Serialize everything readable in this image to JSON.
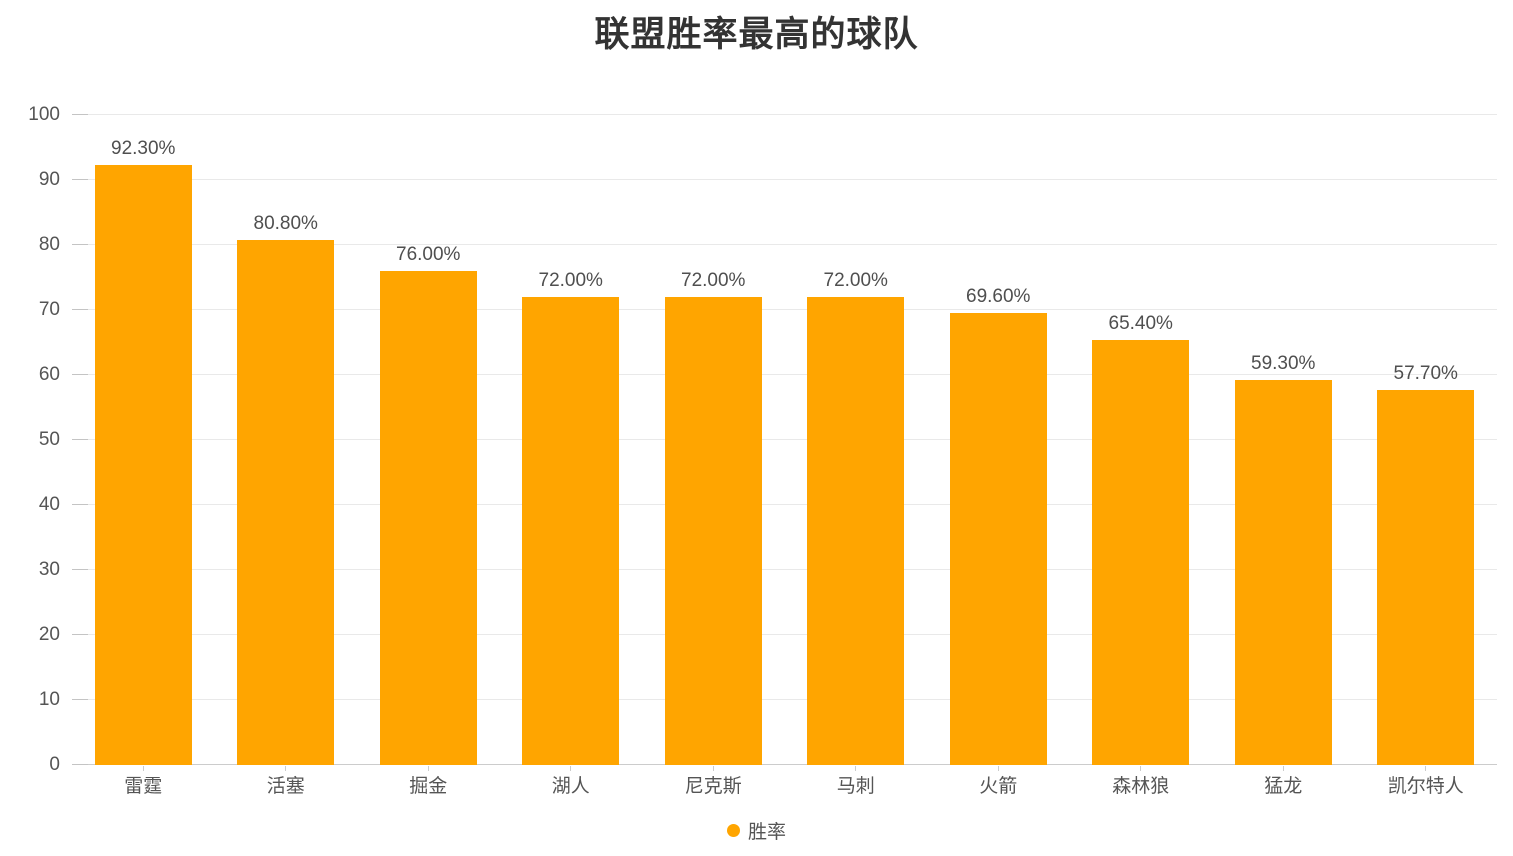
{
  "chart_data": {
    "type": "bar",
    "title": "联盟胜率最高的球队",
    "categories": [
      "雷霆",
      "活塞",
      "掘金",
      "湖人",
      "尼克斯",
      "马刺",
      "火箭",
      "森林狼",
      "猛龙",
      "凯尔特人"
    ],
    "series": [
      {
        "name": "胜率",
        "values": [
          92.3,
          80.8,
          76.0,
          72.0,
          72.0,
          72.0,
          69.6,
          65.4,
          59.3,
          57.7
        ],
        "labels": [
          "92.30%",
          "80.80%",
          "76.00%",
          "72.00%",
          "72.00%",
          "72.00%",
          "69.60%",
          "65.40%",
          "59.30%",
          "57.70%"
        ],
        "color": "#FFA500"
      }
    ],
    "xlabel": "",
    "ylabel": "",
    "ylim": [
      0,
      100
    ],
    "ytick_step": 10,
    "yticks": [
      0,
      10,
      20,
      30,
      40,
      50,
      60,
      70,
      80,
      90,
      100
    ],
    "grid": true,
    "legend": {
      "position": "bottom",
      "marker": "circle",
      "items": [
        {
          "label": "胜率",
          "color": "#FFA500"
        }
      ]
    },
    "colors": {
      "bar": "#FFA500",
      "title_text": "#333333",
      "axis_text": "#555555",
      "value_label_text": "#4f4f4f",
      "gridline": "#e9e9e9",
      "axis_line": "#cccccc",
      "tick": "#c4c4c4",
      "background": "#ffffff"
    }
  }
}
